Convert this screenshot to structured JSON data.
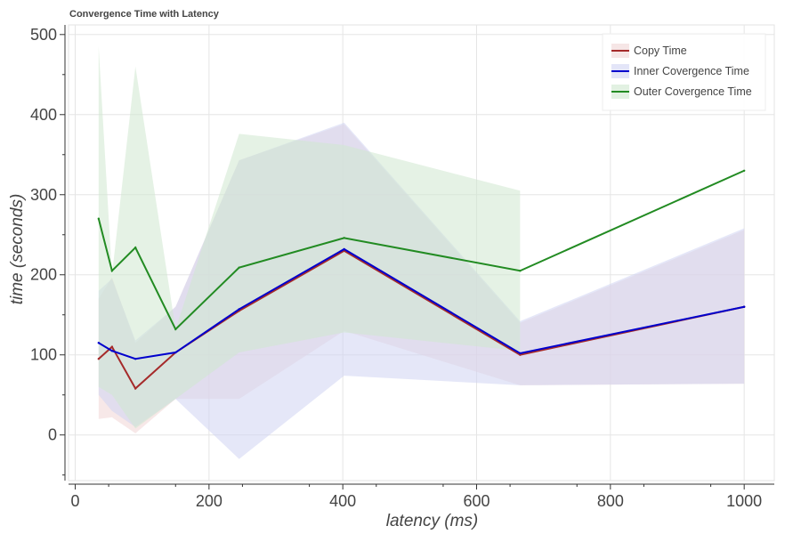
{
  "chart_data": {
    "type": "line",
    "title": "Convergence Time with Latency",
    "xlabel": "latency (ms)",
    "ylabel": "time (seconds)",
    "xlim": [
      -10,
      1045
    ],
    "ylim": [
      -57,
      512
    ],
    "xticks": [
      0,
      200,
      400,
      600,
      800,
      1000
    ],
    "yticks": [
      0,
      100,
      200,
      300,
      400,
      500
    ],
    "grid": true,
    "legend_position": "top-right",
    "x": [
      35,
      55,
      90,
      150,
      245,
      402,
      665,
      1000
    ],
    "series": [
      {
        "name": "Copy Time",
        "color": "#a52a2a",
        "band_color": "#f0d5d5",
        "values": [
          95,
          110,
          58,
          103,
          155,
          230,
          100,
          160
        ],
        "band_lower": [
          20,
          22,
          2,
          45,
          45,
          130,
          62,
          64
        ],
        "band_upper": [
          170,
          197,
          115,
          160,
          343,
          388,
          140,
          256
        ]
      },
      {
        "name": "Inner Covergence Time",
        "color": "#0000cd",
        "band_color": "#d0d3f3",
        "values": [
          115,
          105,
          95,
          103,
          157,
          232,
          102,
          160
        ],
        "band_lower": [
          50,
          30,
          10,
          45,
          -30,
          74,
          62,
          64
        ],
        "band_upper": [
          180,
          195,
          118,
          160,
          343,
          390,
          142,
          258
        ]
      },
      {
        "name": "Outer Covergence Time",
        "color": "#228b22",
        "band_color": "#cfe8cf",
        "values": [
          270,
          205,
          234,
          132,
          209,
          246,
          205,
          330
        ],
        "band_lower": [
          60,
          50,
          8,
          45,
          103,
          128,
          105,
          null
        ],
        "band_upper": [
          485,
          200,
          460,
          132,
          376,
          362,
          305,
          null
        ]
      }
    ]
  }
}
